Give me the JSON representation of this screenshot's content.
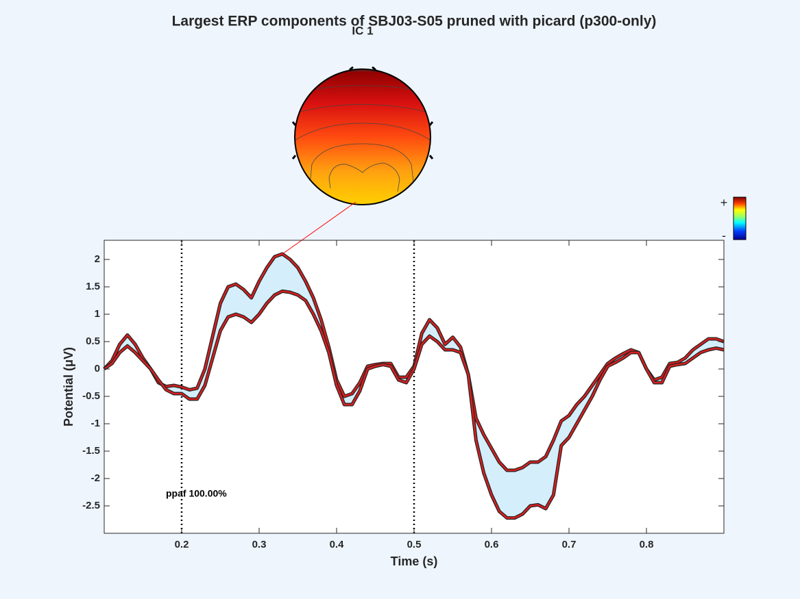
{
  "chart_data": {
    "type": "line",
    "title": "Largest ERP components of SBJ03-S05 pruned with picard (p300-only)",
    "component_label": "IC 1",
    "xlabel": "Time (s)",
    "ylabel": "Potential (μV)",
    "annotation": "ppaf 100.00%",
    "colorbar_labels": [
      "+",
      "-"
    ],
    "x": [
      0.1,
      0.11,
      0.12,
      0.13,
      0.14,
      0.15,
      0.16,
      0.17,
      0.18,
      0.19,
      0.2,
      0.21,
      0.22,
      0.23,
      0.24,
      0.25,
      0.26,
      0.27,
      0.28,
      0.29,
      0.3,
      0.31,
      0.32,
      0.33,
      0.34,
      0.35,
      0.36,
      0.37,
      0.38,
      0.39,
      0.4,
      0.41,
      0.42,
      0.43,
      0.44,
      0.45,
      0.46,
      0.47,
      0.48,
      0.49,
      0.5,
      0.51,
      0.52,
      0.53,
      0.54,
      0.55,
      0.56,
      0.57,
      0.58,
      0.59,
      0.6,
      0.61,
      0.62,
      0.63,
      0.64,
      0.65,
      0.66,
      0.67,
      0.68,
      0.69,
      0.7,
      0.71,
      0.72,
      0.73,
      0.74,
      0.75,
      0.76,
      0.77,
      0.78,
      0.79,
      0.8,
      0.81,
      0.82,
      0.83,
      0.84,
      0.85,
      0.86,
      0.87,
      0.88,
      0.89,
      0.9
    ],
    "series": [
      {
        "color": "#d62020",
        "values": [
          0.0,
          0.15,
          0.45,
          0.62,
          0.45,
          0.2,
          0.0,
          -0.25,
          -0.32,
          -0.3,
          -0.33,
          -0.38,
          -0.35,
          0.0,
          0.6,
          1.2,
          1.5,
          1.55,
          1.45,
          1.3,
          1.6,
          1.85,
          2.05,
          2.1,
          2.0,
          1.85,
          1.6,
          1.3,
          0.9,
          0.4,
          -0.2,
          -0.5,
          -0.45,
          -0.25,
          0.05,
          0.08,
          0.1,
          0.1,
          -0.15,
          -0.15,
          0.05,
          0.65,
          0.9,
          0.75,
          0.45,
          0.58,
          0.4,
          -0.1,
          -0.9,
          -1.2,
          -1.45,
          -1.7,
          -1.85,
          -1.85,
          -1.8,
          -1.7,
          -1.7,
          -1.6,
          -1.3,
          -0.95,
          -0.85,
          -0.65,
          -0.5,
          -0.3,
          -0.1,
          0.1,
          0.2,
          0.28,
          0.35,
          0.3,
          0.0,
          -0.2,
          -0.15,
          0.1,
          0.12,
          0.2,
          0.35,
          0.45,
          0.55,
          0.55,
          0.5
        ]
      },
      {
        "color": "#d62020",
        "values": [
          0.0,
          0.1,
          0.3,
          0.42,
          0.3,
          0.15,
          0.0,
          -0.2,
          -0.38,
          -0.45,
          -0.45,
          -0.55,
          -0.55,
          -0.3,
          0.2,
          0.7,
          0.95,
          1.0,
          0.95,
          0.85,
          1.0,
          1.2,
          1.35,
          1.42,
          1.4,
          1.35,
          1.25,
          1.0,
          0.7,
          0.3,
          -0.3,
          -0.65,
          -0.65,
          -0.4,
          0.0,
          0.05,
          0.08,
          0.05,
          -0.2,
          -0.25,
          0.0,
          0.45,
          0.6,
          0.5,
          0.35,
          0.35,
          0.3,
          -0.1,
          -1.3,
          -1.9,
          -2.3,
          -2.6,
          -2.72,
          -2.72,
          -2.65,
          -2.5,
          -2.48,
          -2.55,
          -2.3,
          -1.4,
          -1.25,
          -1.0,
          -0.75,
          -0.5,
          -0.2,
          0.05,
          0.12,
          0.2,
          0.3,
          0.3,
          0.0,
          -0.25,
          -0.25,
          0.05,
          0.08,
          0.1,
          0.2,
          0.3,
          0.35,
          0.38,
          0.35
        ]
      }
    ],
    "fill_color": "#d4eefc",
    "vlines": [
      0.2,
      0.5
    ],
    "peak_x": 0.33,
    "xlim": [
      0.1,
      0.9
    ],
    "ylim": [
      -3,
      2.35
    ],
    "xticks": [
      0.2,
      0.3,
      0.4,
      0.5,
      0.6,
      0.7,
      0.8
    ],
    "yticks": [
      -2.5,
      -2,
      -1.5,
      -1,
      -0.5,
      0,
      0.5,
      1,
      1.5,
      2
    ]
  }
}
